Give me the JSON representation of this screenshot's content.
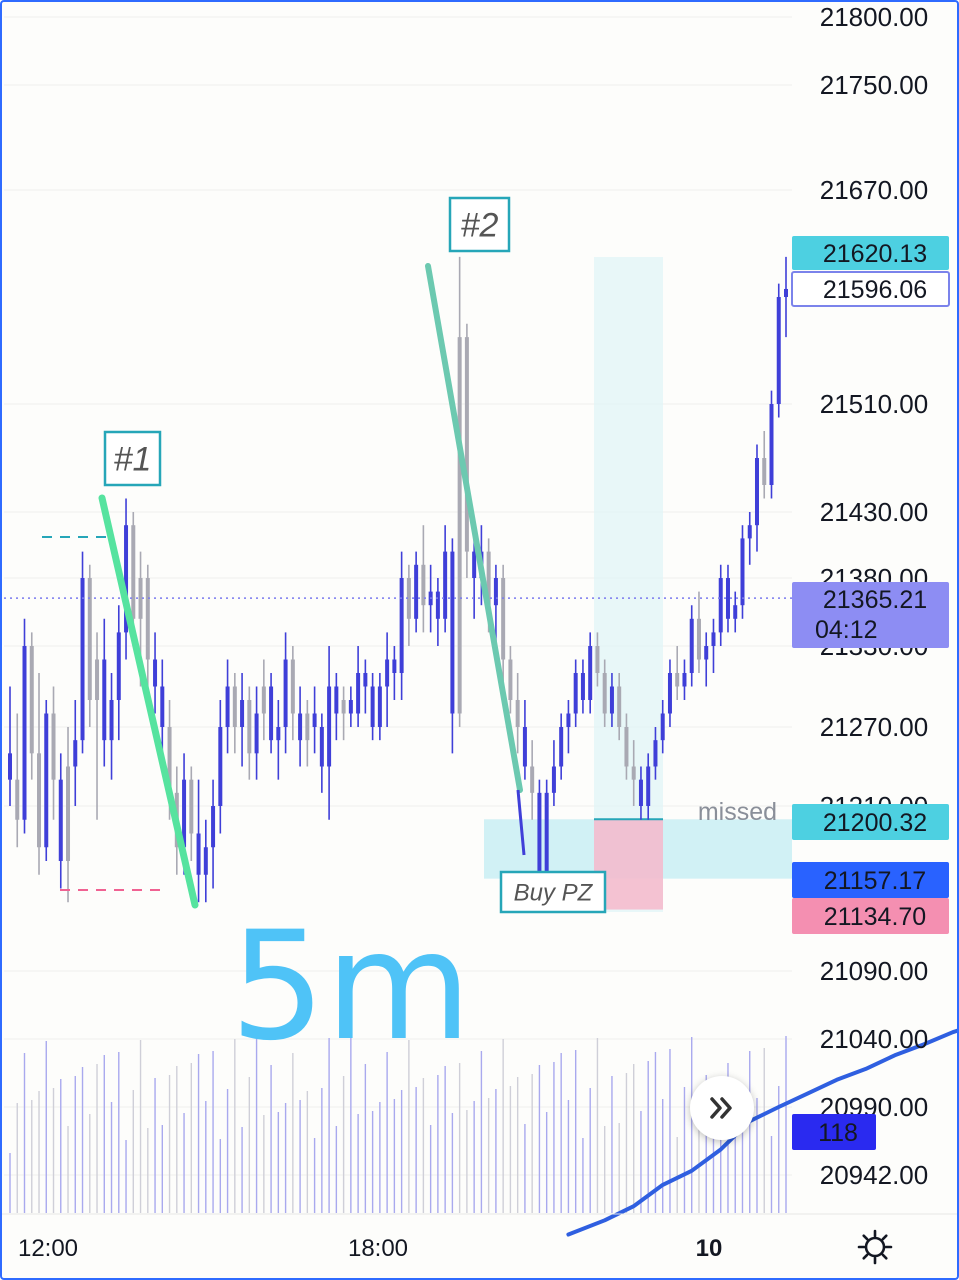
{
  "chart_data": {
    "type": "candlestick",
    "timeframe_annotation": "5m",
    "price_axis": {
      "ticks": [
        "21800.00",
        "21750.00",
        "21670.00",
        "21510.00",
        "21430.00",
        "21380.00",
        "21330.00",
        "21270.00",
        "21210.00",
        "21090.00",
        "21040.00",
        "20990.00",
        "20942.00"
      ],
      "range": [
        20900,
        21815
      ]
    },
    "time_axis": {
      "ticks": [
        "12:00",
        "18:00",
        "10"
      ]
    },
    "price_tags": {
      "high": {
        "value": "21620.13",
        "bg": "#4dd0e1",
        "fg": "#131722"
      },
      "outline": {
        "value": "21596.06",
        "bg": "#ffffff",
        "fg": "#7b83eb",
        "border": "#7b83eb"
      },
      "last": {
        "value": "21365.21",
        "countdown": "04:12",
        "bg": "#8d8df3",
        "fg": "#ffffff"
      },
      "cyan": {
        "value": "21200.32",
        "bg": "#4dd0e1",
        "fg": "#131722"
      },
      "ma": {
        "value": "21157.17",
        "bg": "#2962ff",
        "fg": "#ffffff"
      },
      "pink": {
        "value": "21134.70",
        "bg": "#f48fb1",
        "fg": "#131722"
      },
      "volume": {
        "value": "118",
        "bg": "#2a2af0",
        "fg": "#ffffff"
      }
    },
    "annotations": {
      "label1": "#1",
      "label2": "#2",
      "buy_zone": "Buy PZ",
      "missed": "missed",
      "timeframe": "5m"
    },
    "candles": [
      [
        21250,
        21300,
        21210,
        21230,
        "d"
      ],
      [
        21230,
        21280,
        21180,
        21200,
        "g"
      ],
      [
        21200,
        21350,
        21190,
        21330,
        "u"
      ],
      [
        21330,
        21340,
        21230,
        21250,
        "g"
      ],
      [
        21250,
        21310,
        21160,
        21180,
        "g"
      ],
      [
        21180,
        21290,
        21170,
        21280,
        "u"
      ],
      [
        21280,
        21300,
        21200,
        21230,
        "g"
      ],
      [
        21230,
        21250,
        21150,
        21170,
        "u"
      ],
      [
        21170,
        21270,
        21140,
        21240,
        "g"
      ],
      [
        21240,
        21290,
        21210,
        21260,
        "u"
      ],
      [
        21260,
        21400,
        21250,
        21380,
        "u"
      ],
      [
        21380,
        21390,
        21270,
        21290,
        "g"
      ],
      [
        21290,
        21340,
        21200,
        21320,
        "g"
      ],
      [
        21320,
        21350,
        21240,
        21260,
        "u"
      ],
      [
        21260,
        21310,
        21230,
        21290,
        "u"
      ],
      [
        21290,
        21360,
        21260,
        21340,
        "u"
      ],
      [
        21340,
        21440,
        21320,
        21420,
        "u"
      ],
      [
        21420,
        21430,
        21330,
        21350,
        "g"
      ],
      [
        21350,
        21400,
        21300,
        21380,
        "g"
      ],
      [
        21380,
        21390,
        21300,
        21320,
        "g"
      ],
      [
        21320,
        21340,
        21280,
        21300,
        "u"
      ],
      [
        21300,
        21320,
        21250,
        21270,
        "u"
      ],
      [
        21270,
        21290,
        21200,
        21220,
        "g"
      ],
      [
        21220,
        21240,
        21160,
        21180,
        "g"
      ],
      [
        21180,
        21250,
        21160,
        21230,
        "u"
      ],
      [
        21230,
        21240,
        21170,
        21190,
        "g"
      ],
      [
        21190,
        21230,
        21140,
        21160,
        "u"
      ],
      [
        21160,
        21200,
        21140,
        21180,
        "u"
      ],
      [
        21180,
        21230,
        21150,
        21210,
        "u"
      ],
      [
        21210,
        21290,
        21190,
        21270,
        "u"
      ],
      [
        21270,
        21320,
        21250,
        21300,
        "u"
      ],
      [
        21300,
        21310,
        21250,
        21270,
        "g"
      ],
      [
        21270,
        21310,
        21240,
        21290,
        "u"
      ],
      [
        21290,
        21300,
        21230,
        21250,
        "g"
      ],
      [
        21250,
        21300,
        21230,
        21280,
        "u"
      ],
      [
        21280,
        21320,
        21260,
        21300,
        "g"
      ],
      [
        21300,
        21310,
        21250,
        21260,
        "u"
      ],
      [
        21260,
        21290,
        21230,
        21270,
        "u"
      ],
      [
        21270,
        21340,
        21250,
        21320,
        "u"
      ],
      [
        21320,
        21330,
        21260,
        21280,
        "g"
      ],
      [
        21280,
        21300,
        21240,
        21260,
        "u"
      ],
      [
        21260,
        21290,
        21240,
        21280,
        "g"
      ],
      [
        21280,
        21300,
        21250,
        21270,
        "u"
      ],
      [
        21270,
        21280,
        21220,
        21240,
        "u"
      ],
      [
        21240,
        21330,
        21200,
        21300,
        "u"
      ],
      [
        21300,
        21310,
        21260,
        21280,
        "u"
      ],
      [
        21280,
        21300,
        21260,
        21290,
        "g"
      ],
      [
        21290,
        21300,
        21270,
        21280,
        "u"
      ],
      [
        21280,
        21330,
        21270,
        21310,
        "u"
      ],
      [
        21310,
        21320,
        21280,
        21300,
        "u"
      ],
      [
        21300,
        21310,
        21260,
        21270,
        "u"
      ],
      [
        21270,
        21310,
        21260,
        21300,
        "u"
      ],
      [
        21300,
        21340,
        21270,
        21320,
        "u"
      ],
      [
        21320,
        21330,
        21290,
        21310,
        "u"
      ],
      [
        21310,
        21400,
        21290,
        21380,
        "u"
      ],
      [
        21380,
        21390,
        21330,
        21350,
        "g"
      ],
      [
        21350,
        21400,
        21340,
        21390,
        "u"
      ],
      [
        21390,
        21420,
        21340,
        21360,
        "g"
      ],
      [
        21360,
        21390,
        21340,
        21370,
        "u"
      ],
      [
        21370,
        21380,
        21330,
        21350,
        "u"
      ],
      [
        21350,
        21420,
        21340,
        21400,
        "u"
      ],
      [
        21400,
        21410,
        21250,
        21280,
        "u"
      ],
      [
        21280,
        21620,
        21270,
        21560,
        "g"
      ],
      [
        21560,
        21570,
        21380,
        21400,
        "g"
      ],
      [
        21400,
        21410,
        21350,
        21380,
        "u"
      ],
      [
        21380,
        21420,
        21360,
        21400,
        "u"
      ],
      [
        21400,
        21410,
        21340,
        21360,
        "g"
      ],
      [
        21360,
        21390,
        21330,
        21380,
        "u"
      ],
      [
        21380,
        21390,
        21300,
        21320,
        "g"
      ],
      [
        21320,
        21330,
        21280,
        21290,
        "g"
      ],
      [
        21290,
        21310,
        21250,
        21270,
        "g"
      ],
      [
        21270,
        21290,
        21230,
        21240,
        "u"
      ],
      [
        21240,
        21260,
        21200,
        21220,
        "g"
      ],
      [
        21220,
        21230,
        21150,
        21160,
        "u"
      ],
      [
        21160,
        21230,
        21160,
        21220,
        "u"
      ],
      [
        21220,
        21260,
        21210,
        21240,
        "u"
      ],
      [
        21240,
        21280,
        21230,
        21270,
        "u"
      ],
      [
        21270,
        21290,
        21250,
        21280,
        "u"
      ],
      [
        21280,
        21320,
        21270,
        21310,
        "u"
      ],
      [
        21310,
        21320,
        21280,
        21290,
        "u"
      ],
      [
        21290,
        21340,
        21280,
        21330,
        "u"
      ],
      [
        21330,
        21340,
        21300,
        21310,
        "g"
      ],
      [
        21310,
        21320,
        21270,
        21280,
        "g"
      ],
      [
        21280,
        21310,
        21270,
        21300,
        "u"
      ],
      [
        21300,
        21310,
        21260,
        21270,
        "g"
      ],
      [
        21270,
        21280,
        21230,
        21240,
        "g"
      ],
      [
        21240,
        21260,
        21210,
        21230,
        "g"
      ],
      [
        21230,
        21240,
        21200,
        21210,
        "u"
      ],
      [
        21210,
        21250,
        21200,
        21240,
        "u"
      ],
      [
        21240,
        21270,
        21230,
        21260,
        "u"
      ],
      [
        21260,
        21290,
        21250,
        21280,
        "u"
      ],
      [
        21280,
        21320,
        21270,
        21310,
        "u"
      ],
      [
        21310,
        21330,
        21290,
        21300,
        "g"
      ],
      [
        21300,
        21320,
        21290,
        21310,
        "u"
      ],
      [
        21310,
        21360,
        21300,
        21350,
        "u"
      ],
      [
        21350,
        21370,
        21310,
        21320,
        "g"
      ],
      [
        21320,
        21340,
        21300,
        21330,
        "u"
      ],
      [
        21330,
        21350,
        21310,
        21340,
        "u"
      ],
      [
        21340,
        21390,
        21330,
        21380,
        "u"
      ],
      [
        21380,
        21390,
        21340,
        21350,
        "u"
      ],
      [
        21350,
        21370,
        21340,
        21360,
        "u"
      ],
      [
        21360,
        21420,
        21350,
        21410,
        "u"
      ],
      [
        21410,
        21430,
        21390,
        21420,
        "u"
      ],
      [
        21420,
        21480,
        21400,
        21470,
        "u"
      ],
      [
        21470,
        21490,
        21440,
        21450,
        "g"
      ],
      [
        21450,
        21520,
        21440,
        21510,
        "u"
      ],
      [
        21510,
        21600,
        21500,
        21590,
        "u"
      ],
      [
        21590,
        21620,
        21560,
        21596,
        "u"
      ]
    ],
    "ma_line": [
      [
        77,
        20900
      ],
      [
        82,
        20910
      ],
      [
        86,
        20920
      ],
      [
        90,
        20935
      ],
      [
        94,
        20945
      ],
      [
        98,
        20960
      ],
      [
        102,
        20980
      ],
      [
        106,
        20990
      ],
      [
        110,
        21000
      ],
      [
        114,
        21010
      ],
      [
        118,
        21018
      ],
      [
        122,
        21028
      ],
      [
        126,
        21036
      ],
      [
        130,
        21045
      ],
      [
        134,
        21052
      ],
      [
        138,
        21060
      ],
      [
        142,
        21070
      ],
      [
        146,
        21078
      ],
      [
        150,
        21086
      ],
      [
        154,
        21094
      ],
      [
        158,
        21104
      ],
      [
        160,
        21112
      ]
    ]
  }
}
